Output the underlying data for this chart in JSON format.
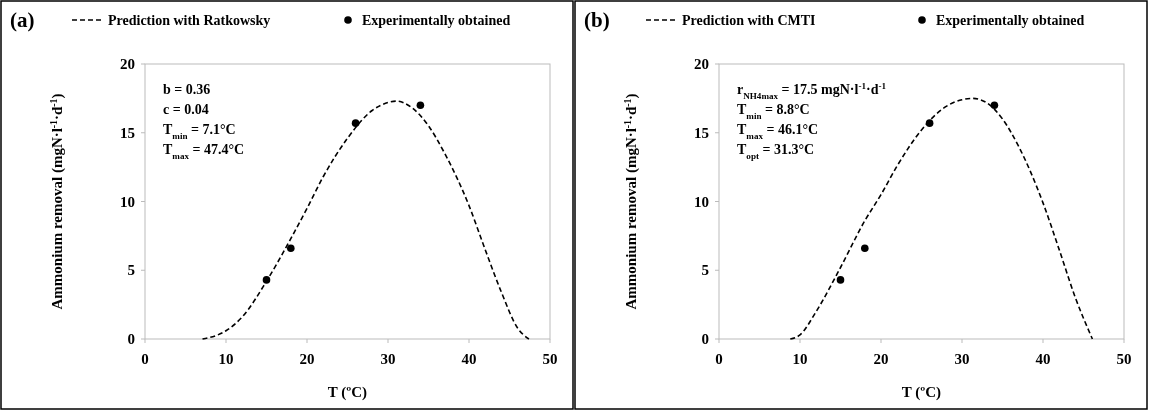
{
  "chart_data": [
    {
      "type": "line",
      "title": "(a)",
      "xlabel": "T (ºC)",
      "ylabel": "Ammonium removal (mgN·l$^{-1}$·d$^{-1}$)",
      "xlim": [
        0,
        50
      ],
      "xticks": [
        0,
        10,
        20,
        30,
        40,
        50
      ],
      "ylim": [
        0,
        20
      ],
      "yticks": [
        0,
        5,
        10,
        15,
        20
      ],
      "grid": false,
      "legend": "top",
      "annotations": [
        "b = 0.36",
        "c = 0.04",
        "T$_{min}$ = 7.1°C",
        "T$_{max}$ = 47.4°C"
      ],
      "series": [
        {
          "name": "Prediction with Ratkowsky",
          "color": "#000000",
          "line_style": "dashed",
          "x": [
            7.1,
            10,
            12,
            15,
            18,
            20,
            22,
            25,
            28,
            30,
            31,
            33,
            35,
            37,
            40,
            42,
            44,
            46,
            47.4
          ],
          "values": [
            0,
            0.6,
            1.6,
            4.2,
            7.3,
            9.5,
            11.8,
            14.6,
            16.6,
            17.2,
            17.3,
            16.8,
            15.5,
            13.5,
            9.7,
            6.5,
            3.4,
            0.8,
            0
          ]
        },
        {
          "name": "Experimentally obtained",
          "type": "scatter",
          "color": "#000000",
          "marker": "circle",
          "x": [
            15,
            18,
            26,
            34
          ],
          "values": [
            4.3,
            6.6,
            15.7,
            17.0
          ]
        }
      ]
    },
    {
      "type": "line",
      "title": "(b)",
      "xlabel": "T (ºC)",
      "ylabel": "Ammonium removal (mgN·l$^{-1}$·d$^{-1}$)",
      "xlim": [
        0,
        50
      ],
      "xticks": [
        0,
        10,
        20,
        30,
        40,
        50
      ],
      "ylim": [
        0,
        20
      ],
      "yticks": [
        0,
        5,
        10,
        15,
        20
      ],
      "grid": false,
      "legend": "top",
      "annotations": [
        "r$_{NH4max}$ = 17.5 mgN·l$^{-1}$·d$^{-1}$",
        "T$_{min}$ = 8.8°C",
        "T$_{max}$ = 46.1°C",
        "T$_{opt}$ = 31.3°C"
      ],
      "series": [
        {
          "name": "Prediction with CMTI",
          "color": "#000000",
          "line_style": "dashed",
          "x": [
            8.8,
            10,
            12,
            15,
            18,
            20,
            22,
            25,
            28,
            30,
            31.3,
            33,
            35,
            37,
            40,
            42,
            44,
            46.1
          ],
          "values": [
            0,
            0.3,
            2,
            5.2,
            8.6,
            10.5,
            12.6,
            15.2,
            16.9,
            17.4,
            17.5,
            17.2,
            16,
            14,
            9.9,
            6.5,
            3,
            0
          ]
        },
        {
          "name": "Experimentally obtained",
          "type": "scatter",
          "color": "#000000",
          "marker": "circle",
          "x": [
            15,
            18,
            26,
            34
          ],
          "values": [
            4.3,
            6.6,
            15.7,
            17.0
          ]
        }
      ]
    }
  ]
}
